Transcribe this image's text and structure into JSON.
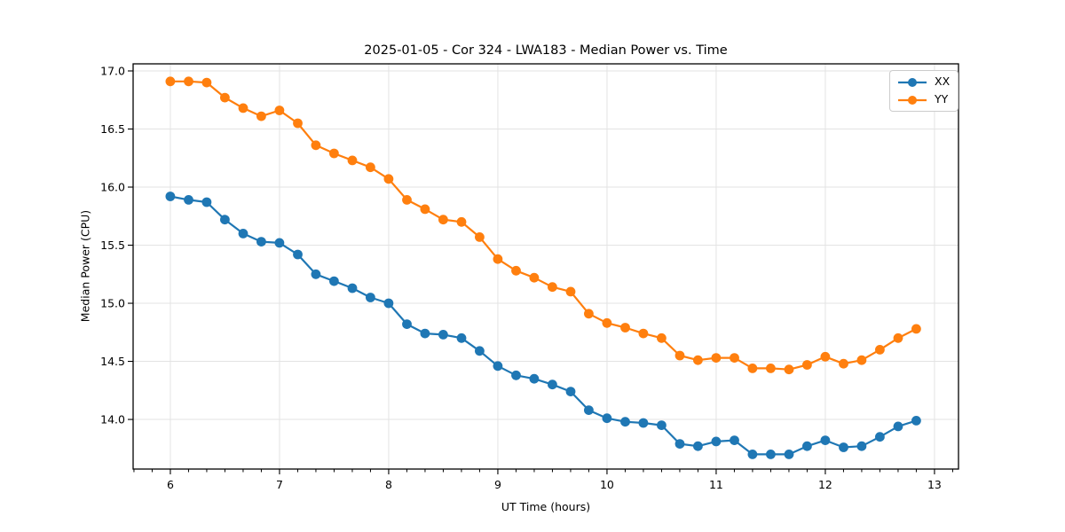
{
  "chart_data": {
    "type": "line",
    "title": "2025-01-05 - Cor 324 - LWA183 - Median Power vs. Time",
    "xlabel": "UT Time (hours)",
    "ylabel": "Median Power (CPU)",
    "xlim": [
      5.659,
      13.22
    ],
    "ylim": [
      13.573,
      17.061
    ],
    "xticks": [
      6,
      7,
      8,
      9,
      10,
      11,
      12,
      13
    ],
    "xtick_labels": [
      "6",
      "7",
      "8",
      "9",
      "10",
      "11",
      "12",
      "13"
    ],
    "yticks": [
      14.0,
      14.5,
      15.0,
      15.5,
      16.0,
      16.5,
      17.0
    ],
    "ytick_labels": [
      "14.0",
      "14.5",
      "15.0",
      "15.5",
      "16.0",
      "16.5",
      "17.0"
    ],
    "minor_xtick_step": 0.1666667,
    "grid": true,
    "grid_color": "#e3e3e3",
    "axis_color": "#000000",
    "legend_position": "upper right",
    "marker": "circle",
    "x": [
      6.0,
      6.167,
      6.333,
      6.5,
      6.667,
      6.833,
      7.0,
      7.167,
      7.333,
      7.5,
      7.667,
      7.833,
      8.0,
      8.167,
      8.333,
      8.5,
      8.667,
      8.833,
      9.0,
      9.167,
      9.333,
      9.5,
      9.667,
      9.833,
      10.0,
      10.167,
      10.333,
      10.5,
      10.667,
      10.833,
      11.0,
      11.167,
      11.333,
      11.5,
      11.667,
      11.833,
      12.0,
      12.167,
      12.333,
      12.5,
      12.667,
      12.833
    ],
    "series": [
      {
        "name": "XX",
        "color": "#1f77b4",
        "values": [
          15.92,
          15.89,
          15.87,
          15.72,
          15.6,
          15.53,
          15.52,
          15.42,
          15.25,
          15.19,
          15.13,
          15.05,
          15.0,
          14.82,
          14.74,
          14.73,
          14.7,
          14.59,
          14.46,
          14.38,
          14.35,
          14.3,
          14.24,
          14.08,
          14.01,
          13.98,
          13.97,
          13.95,
          13.79,
          13.77,
          13.81,
          13.82,
          13.7,
          13.7,
          13.7,
          13.77,
          13.82,
          13.76,
          13.77,
          13.85,
          13.94,
          13.99
        ]
      },
      {
        "name": "YY",
        "color": "#ff7f0e",
        "values": [
          16.91,
          16.91,
          16.9,
          16.77,
          16.68,
          16.61,
          16.66,
          16.55,
          16.36,
          16.29,
          16.23,
          16.17,
          16.07,
          15.89,
          15.81,
          15.72,
          15.7,
          15.57,
          15.38,
          15.28,
          15.22,
          15.14,
          15.1,
          14.91,
          14.83,
          14.79,
          14.74,
          14.7,
          14.55,
          14.51,
          14.53,
          14.53,
          14.44,
          14.44,
          14.43,
          14.47,
          14.54,
          14.48,
          14.51,
          14.6,
          14.7,
          14.78
        ]
      }
    ]
  }
}
